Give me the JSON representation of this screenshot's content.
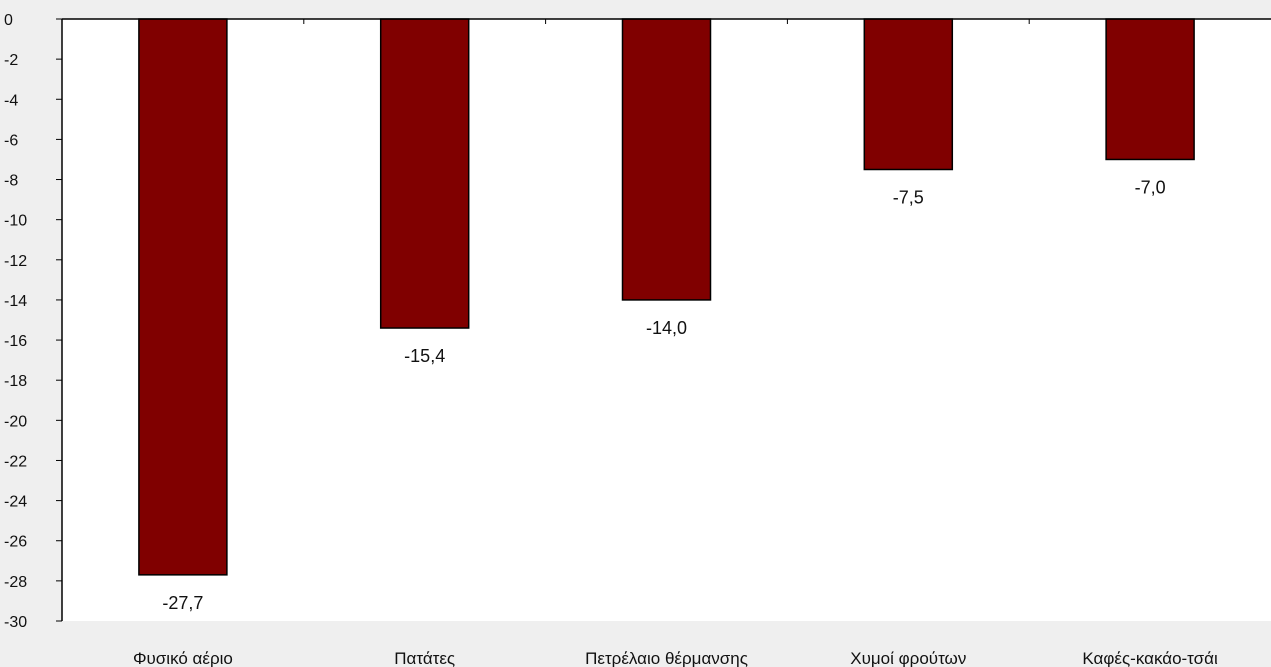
{
  "chart_data": {
    "type": "bar",
    "categories": [
      "Φυσικό αέριο",
      "Πατάτες",
      "Πετρέλαιο θέρμανσης",
      "Χυμοί φρούτων",
      "Καφές-κακάο-τσάι"
    ],
    "values": [
      -27.7,
      -15.4,
      -14.0,
      -7.5,
      -7.0
    ],
    "data_labels": [
      "-27,7",
      "-15,4",
      "-14,0",
      "-7,5",
      "-7,0"
    ],
    "title": "",
    "xlabel": "",
    "ylabel": "",
    "ylim": [
      -30,
      0
    ],
    "yticks": [
      0,
      -2,
      -4,
      -6,
      -8,
      -10,
      -12,
      -14,
      -16,
      -18,
      -20,
      -22,
      -24,
      -26,
      -28,
      -30
    ],
    "grid": false,
    "legend": "none",
    "colors": {
      "bar_fill": "#800000",
      "bar_stroke": "#000000",
      "plot_background": "#ffffff",
      "page_background": "#efefef",
      "axis": "#000000"
    }
  }
}
